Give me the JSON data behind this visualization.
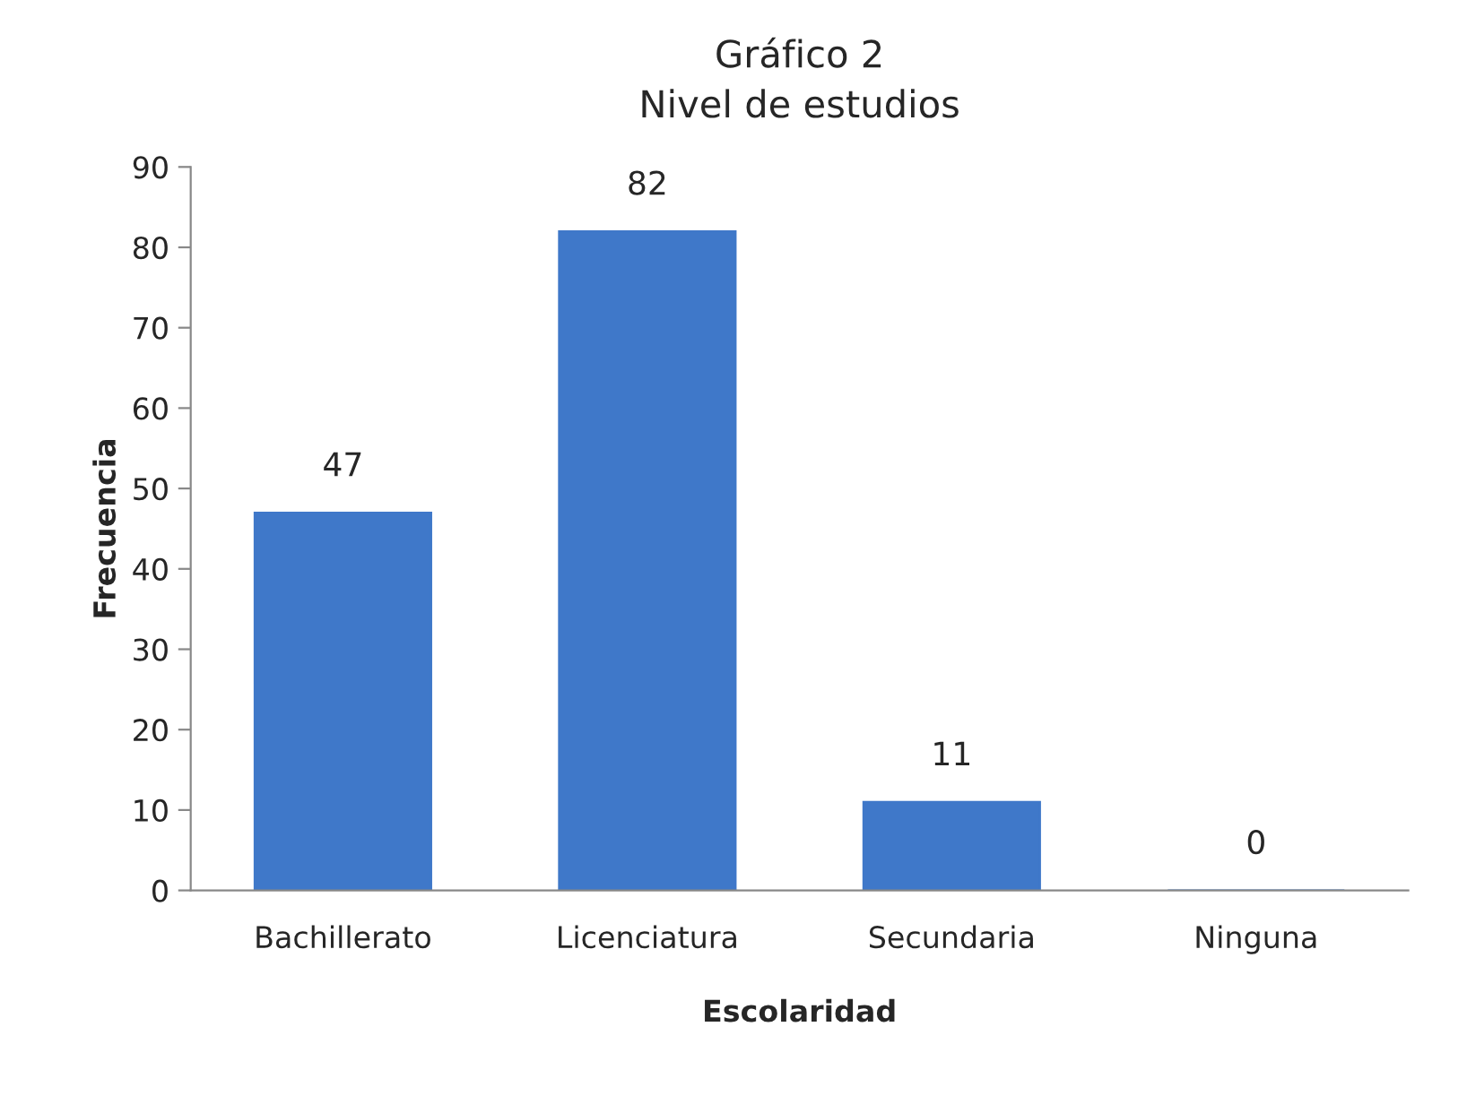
{
  "chart_data": {
    "type": "bar",
    "title": "Gráfico 2",
    "subtitle": "Nivel de estudios",
    "xlabel": "Escolaridad",
    "ylabel": "Frecuencia",
    "categories": [
      "Bachillerato",
      "Licenciatura",
      "Secundaria",
      "Ninguna"
    ],
    "values": [
      47,
      82,
      11,
      0
    ],
    "color": "#3f78c9",
    "ylim": [
      0,
      90
    ],
    "yticks": [
      0,
      10,
      20,
      30,
      40,
      50,
      60,
      70,
      80,
      90
    ],
    "grid": false,
    "legend": false,
    "data_labels": true
  }
}
